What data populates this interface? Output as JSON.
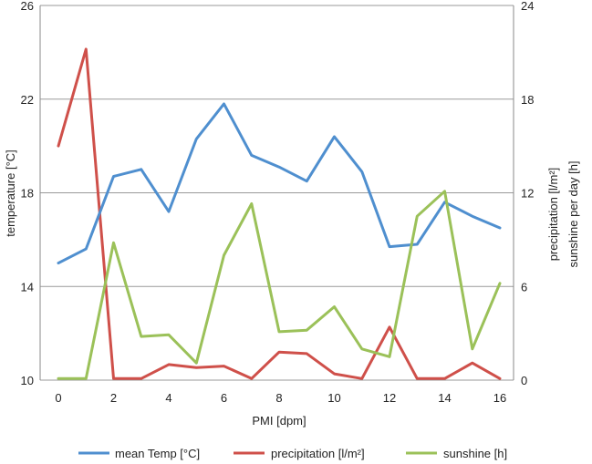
{
  "chart_data": {
    "type": "line",
    "x": [
      0,
      1,
      2,
      3,
      4,
      5,
      6,
      7,
      8,
      9,
      10,
      11,
      12,
      13,
      14,
      15,
      16
    ],
    "xlabel": "PMI [dpm]",
    "ylabel_left": "temperature [°C]",
    "ylabel_right_1": "precipitation [l/m²]",
    "ylabel_right_2": "sunshine per day [h]",
    "xlim": [
      0,
      16
    ],
    "x_ticks": [
      "0",
      "2",
      "4",
      "6",
      "8",
      "10",
      "12",
      "14",
      "16"
    ],
    "ylim_left": [
      10,
      26
    ],
    "y_ticks_left": [
      "10",
      "14",
      "18",
      "22",
      "26"
    ],
    "ylim_right": [
      0,
      24
    ],
    "y_ticks_right": [
      "0",
      "6",
      "12",
      "18",
      "24"
    ],
    "grid": true,
    "legend_position": "bottom",
    "series": [
      {
        "name": "mean Temp [°C]",
        "axis": "left",
        "color": "#4f8fcf",
        "values": [
          15.0,
          15.6,
          18.7,
          19.0,
          17.2,
          20.3,
          21.8,
          19.6,
          19.1,
          18.5,
          20.4,
          18.9,
          15.7,
          15.8,
          17.6,
          17.0,
          16.5
        ]
      },
      {
        "name": "precipitation [l/m²]",
        "axis": "right",
        "color": "#cf504a",
        "values": [
          15.0,
          21.2,
          0.1,
          0.1,
          1.0,
          0.8,
          0.9,
          0.1,
          1.8,
          1.7,
          0.4,
          0.1,
          3.4,
          0.1,
          0.1,
          1.1,
          0.1
        ]
      },
      {
        "name": "sunshine [h]",
        "axis": "right",
        "color": "#9bc159",
        "values": [
          0.1,
          0.1,
          8.8,
          2.8,
          2.9,
          1.1,
          8.0,
          11.3,
          3.1,
          3.2,
          4.7,
          2.0,
          1.5,
          10.5,
          12.1,
          2.0,
          6.2
        ]
      }
    ]
  }
}
